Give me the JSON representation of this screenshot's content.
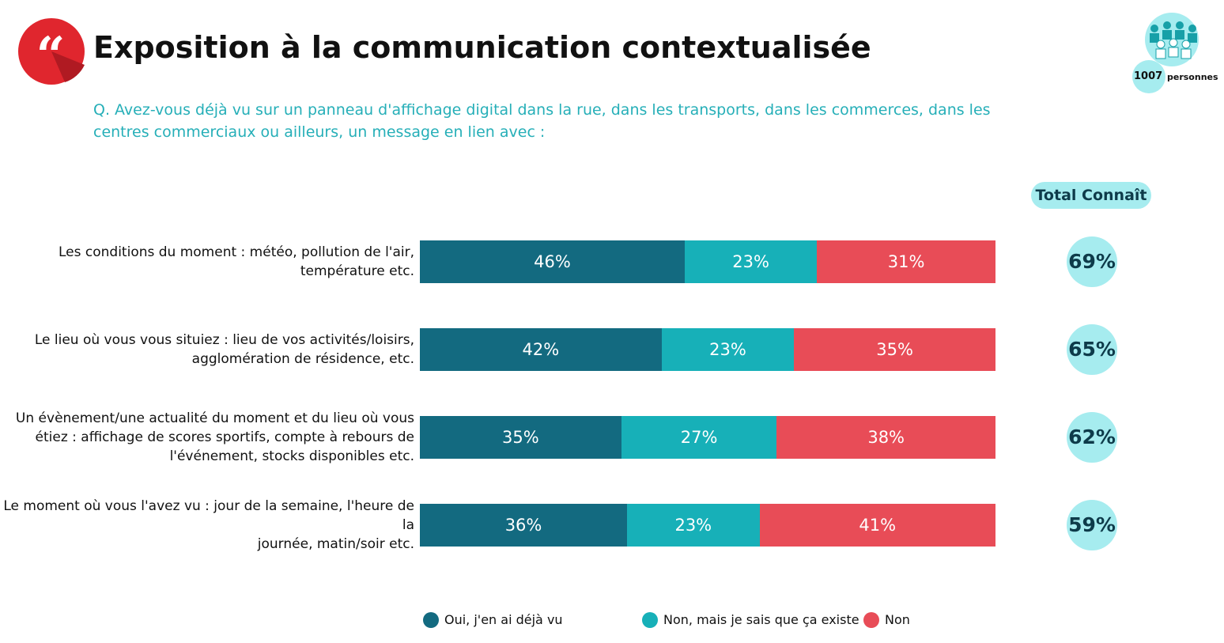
{
  "chart_data": {
    "type": "stacked_bar_horizontal",
    "title": "Exposition à la communication contextualisée",
    "subtitle": "Q. Avez-vous déjà vu sur un panneau d'affichage digital dans la rue, dans les transports, dans les commerces, dans les centres commerciaux ou ailleurs, un message en lien avec :",
    "sample": {
      "value": 1007,
      "label": "personnes"
    },
    "categories": [
      "Les conditions du moment : météo, pollution de l'air,\ntempérature etc.",
      "Le lieu où vous vous situiez : lieu de vos activités/loisirs,\nagglomération de résidence, etc.",
      "Un évènement/une actualité du moment et du lieu où vous\nétiez : affichage de scores sportifs, compte à rebours de\nl'événement, stocks disponibles etc.",
      "Le moment où vous l'avez vu : jour de la semaine, l'heure de la\njournée, matin/soir etc."
    ],
    "xlim": [
      0,
      100
    ],
    "series": [
      {
        "name": "Oui, j'en ai déjà vu",
        "color": "#136a80",
        "values": [
          46,
          42,
          35,
          36
        ],
        "value_labels": [
          "46%",
          "42%",
          "35%",
          "36%"
        ]
      },
      {
        "name": "Non, mais je sais que ça existe",
        "color": "#17b0b8",
        "values": [
          23,
          23,
          27,
          23
        ],
        "value_labels": [
          "23%",
          "23%",
          "27%",
          "23%"
        ]
      },
      {
        "name": "Non",
        "color": "#e84c57",
        "values": [
          31,
          35,
          38,
          41
        ],
        "value_labels": [
          "31%",
          "35%",
          "38%",
          "41%"
        ]
      }
    ],
    "totals": {
      "title": "Total Connaît",
      "color": "#a6ecef",
      "values": [
        69,
        65,
        62,
        59
      ],
      "value_labels": [
        "69%",
        "65%",
        "62%",
        "59%"
      ]
    }
  }
}
